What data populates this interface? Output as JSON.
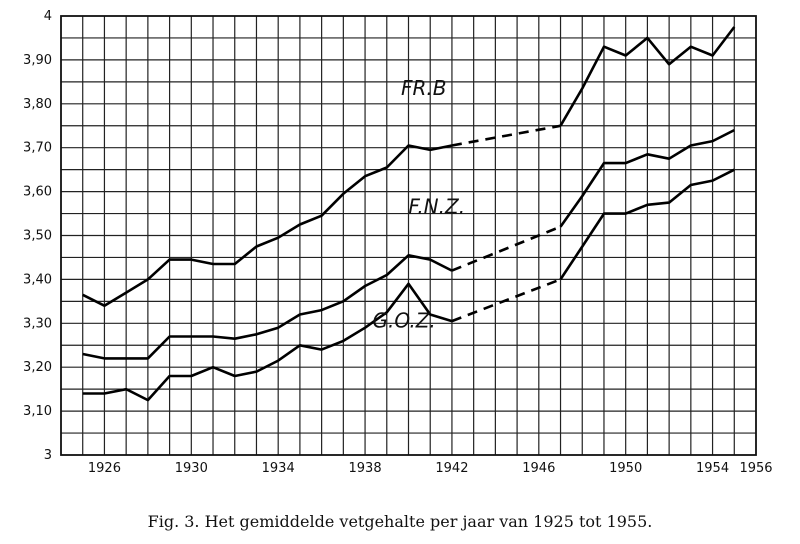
{
  "caption": "Fig. 3.   Het gemiddelde vetgehalte per jaar van 1925 tot 1955.",
  "chart_data": {
    "type": "line",
    "title": "",
    "xlabel": "",
    "ylabel": "",
    "xlim": [
      1924,
      1956
    ],
    "ylim": [
      3.0,
      4.0
    ],
    "grid": true,
    "x_ticks": [
      {
        "value": 1926,
        "label": "1926"
      },
      {
        "value": 1930,
        "label": "1930"
      },
      {
        "value": 1934,
        "label": "1934"
      },
      {
        "value": 1938,
        "label": "1938"
      },
      {
        "value": 1942,
        "label": "1942"
      },
      {
        "value": 1946,
        "label": "1946"
      },
      {
        "value": 1950,
        "label": "1950"
      },
      {
        "value": 1954,
        "label": "1954"
      },
      {
        "value": 1956,
        "label": "1956"
      }
    ],
    "y_ticks": [
      {
        "value": 3.0,
        "label": "3"
      },
      {
        "value": 3.1,
        "label": "3,10"
      },
      {
        "value": 3.2,
        "label": "3,20"
      },
      {
        "value": 3.3,
        "label": "3,30"
      },
      {
        "value": 3.4,
        "label": "3,40"
      },
      {
        "value": 3.5,
        "label": "3,50"
      },
      {
        "value": 3.6,
        "label": "3,60"
      },
      {
        "value": 3.7,
        "label": "3,70"
      },
      {
        "value": 3.8,
        "label": "3,80"
      },
      {
        "value": 3.9,
        "label": "3,90"
      },
      {
        "value": 4.0,
        "label": "4"
      }
    ],
    "series": [
      {
        "name": "FR.B",
        "points": [
          [
            1925,
            3.365
          ],
          [
            1926,
            3.34
          ],
          [
            1927,
            3.37
          ],
          [
            1928,
            3.4
          ],
          [
            1929,
            3.445
          ],
          [
            1930,
            3.445
          ],
          [
            1931,
            3.435
          ],
          [
            1932,
            3.435
          ],
          [
            1933,
            3.475
          ],
          [
            1934,
            3.495
          ],
          [
            1935,
            3.525
          ],
          [
            1936,
            3.545
          ],
          [
            1937,
            3.595
          ],
          [
            1938,
            3.635
          ],
          [
            1939,
            3.655
          ],
          [
            1940,
            3.705
          ],
          [
            1941,
            3.695
          ],
          [
            1942,
            3.705
          ]
        ],
        "dashed": [
          [
            1942,
            3.705
          ],
          [
            1947,
            3.75
          ]
        ],
        "points2": [
          [
            1947,
            3.75
          ],
          [
            1948,
            3.835
          ],
          [
            1949,
            3.93
          ],
          [
            1950,
            3.91
          ],
          [
            1951,
            3.95
          ],
          [
            1952,
            3.89
          ],
          [
            1953,
            3.93
          ],
          [
            1954,
            3.91
          ],
          [
            1955,
            3.975
          ]
        ]
      },
      {
        "name": "F.N.Z.",
        "points": [
          [
            1925,
            3.23
          ],
          [
            1926,
            3.22
          ],
          [
            1927,
            3.22
          ],
          [
            1928,
            3.22
          ],
          [
            1929,
            3.27
          ],
          [
            1930,
            3.27
          ],
          [
            1931,
            3.27
          ],
          [
            1932,
            3.265
          ],
          [
            1933,
            3.275
          ],
          [
            1934,
            3.29
          ],
          [
            1935,
            3.32
          ],
          [
            1936,
            3.33
          ],
          [
            1937,
            3.35
          ],
          [
            1938,
            3.385
          ],
          [
            1939,
            3.41
          ],
          [
            1940,
            3.455
          ],
          [
            1941,
            3.445
          ],
          [
            1942,
            3.42
          ]
        ],
        "dashed": [
          [
            1942,
            3.42
          ],
          [
            1947,
            3.52
          ]
        ],
        "points2": [
          [
            1947,
            3.52
          ],
          [
            1948,
            3.59
          ],
          [
            1949,
            3.665
          ],
          [
            1950,
            3.665
          ],
          [
            1951,
            3.685
          ],
          [
            1952,
            3.675
          ],
          [
            1953,
            3.705
          ],
          [
            1954,
            3.715
          ],
          [
            1955,
            3.74
          ]
        ]
      },
      {
        "name": "G.O.Z.",
        "points": [
          [
            1925,
            3.14
          ],
          [
            1926,
            3.14
          ],
          [
            1927,
            3.15
          ],
          [
            1928,
            3.125
          ],
          [
            1929,
            3.18
          ],
          [
            1930,
            3.18
          ],
          [
            1931,
            3.2
          ],
          [
            1932,
            3.18
          ],
          [
            1933,
            3.19
          ],
          [
            1934,
            3.215
          ],
          [
            1935,
            3.25
          ],
          [
            1936,
            3.24
          ],
          [
            1937,
            3.26
          ],
          [
            1938,
            3.29
          ],
          [
            1939,
            3.325
          ],
          [
            1940,
            3.39
          ],
          [
            1941,
            3.32
          ],
          [
            1942,
            3.305
          ]
        ],
        "dashed": [
          [
            1942,
            3.305
          ],
          [
            1947,
            3.4
          ]
        ],
        "points2": [
          [
            1947,
            3.4
          ],
          [
            1948,
            3.475
          ],
          [
            1949,
            3.55
          ],
          [
            1950,
            3.55
          ],
          [
            1951,
            3.57
          ],
          [
            1952,
            3.575
          ],
          [
            1953,
            3.615
          ],
          [
            1954,
            3.625
          ],
          [
            1955,
            3.65
          ]
        ]
      }
    ],
    "annotations": [
      {
        "text": "FR.B",
        "x": 1940.7,
        "y": 3.82
      },
      {
        "text": "F.N.Z.",
        "x": 1941.3,
        "y": 3.55
      },
      {
        "text": "G.O.Z.",
        "x": 1939.8,
        "y": 3.29
      }
    ]
  }
}
